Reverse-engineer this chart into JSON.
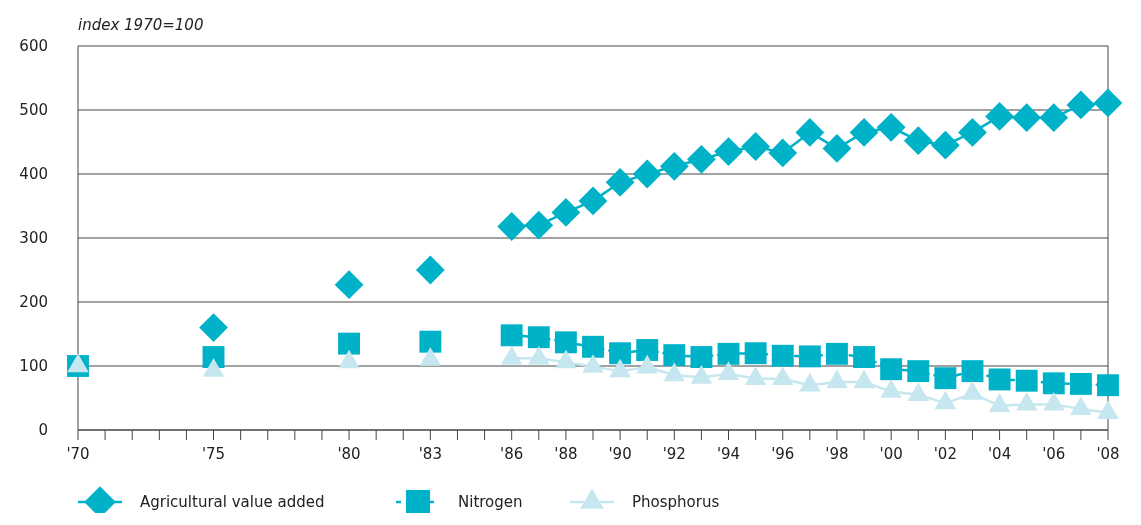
{
  "chart_data": {
    "type": "line",
    "ylabel": "index 1970=100",
    "x": [
      1970,
      1971,
      1972,
      1973,
      1974,
      1975,
      1976,
      1977,
      1978,
      1979,
      1980,
      1981,
      1982,
      1983,
      1984,
      1985,
      1986,
      1987,
      1988,
      1989,
      1990,
      1991,
      1992,
      1993,
      1994,
      1995,
      1996,
      1997,
      1998,
      1999,
      2000,
      2001,
      2002,
      2003,
      2004,
      2005,
      2006,
      2007,
      2008
    ],
    "series": [
      {
        "name": "Agricultural value added",
        "color": "#00b2c8",
        "marker": "diamond",
        "line_style": "solid",
        "values": [
          null,
          null,
          null,
          null,
          null,
          160,
          null,
          null,
          null,
          null,
          227,
          null,
          null,
          250,
          null,
          null,
          318,
          320,
          340,
          358,
          387,
          400,
          412,
          423,
          435,
          443,
          433,
          465,
          440,
          465,
          473,
          452,
          445,
          465,
          490,
          488,
          488,
          508,
          511
        ]
      },
      {
        "name": "Nitrogen",
        "color": "#00b2c8",
        "marker": "square",
        "line_style": "dashed",
        "values": [
          100,
          null,
          null,
          null,
          null,
          114,
          null,
          null,
          null,
          null,
          135,
          null,
          null,
          138,
          null,
          null,
          148,
          145,
          137,
          130,
          120,
          125,
          117,
          114,
          119,
          120,
          116,
          115,
          119,
          114,
          95,
          92,
          81,
          92,
          79,
          77,
          73,
          72,
          70
        ]
      },
      {
        "name": "Phosphorus",
        "color": "#c6e7ef",
        "marker": "triangle",
        "line_style": "solid",
        "values": [
          100,
          null,
          null,
          null,
          null,
          93,
          null,
          null,
          null,
          null,
          106,
          null,
          null,
          110,
          null,
          null,
          112,
          112,
          106,
          99,
          92,
          98,
          86,
          82,
          88,
          80,
          80,
          70,
          75,
          75,
          60,
          55,
          42,
          57,
          38,
          40,
          40,
          33,
          27
        ]
      }
    ],
    "xlim": [
      1970,
      2008
    ],
    "xticks": [
      {
        "value": 1970,
        "label": "'70"
      },
      {
        "value": 1971,
        "label": null
      },
      {
        "value": 1972,
        "label": null
      },
      {
        "value": 1973,
        "label": null
      },
      {
        "value": 1974,
        "label": null
      },
      {
        "value": 1975,
        "label": "'75"
      },
      {
        "value": 1976,
        "label": null
      },
      {
        "value": 1977,
        "label": null
      },
      {
        "value": 1978,
        "label": null
      },
      {
        "value": 1979,
        "label": null
      },
      {
        "value": 1980,
        "label": "'80"
      },
      {
        "value": 1981,
        "label": null
      },
      {
        "value": 1982,
        "label": null
      },
      {
        "value": 1983,
        "label": "'83"
      },
      {
        "value": 1984,
        "label": null
      },
      {
        "value": 1985,
        "label": null
      },
      {
        "value": 1986,
        "label": "'86"
      },
      {
        "value": 1987,
        "label": null
      },
      {
        "value": 1988,
        "label": "'88"
      },
      {
        "value": 1989,
        "label": null
      },
      {
        "value": 1990,
        "label": "'90"
      },
      {
        "value": 1991,
        "label": null
      },
      {
        "value": 1992,
        "label": "'92"
      },
      {
        "value": 1993,
        "label": null
      },
      {
        "value": 1994,
        "label": "'94"
      },
      {
        "value": 1995,
        "label": null
      },
      {
        "value": 1996,
        "label": "'96"
      },
      {
        "value": 1997,
        "label": null
      },
      {
        "value": 1998,
        "label": "'98"
      },
      {
        "value": 1999,
        "label": null
      },
      {
        "value": 2000,
        "label": "'00"
      },
      {
        "value": 2001,
        "label": null
      },
      {
        "value": 2002,
        "label": "'02"
      },
      {
        "value": 2003,
        "label": null
      },
      {
        "value": 2004,
        "label": "'04"
      },
      {
        "value": 2005,
        "label": null
      },
      {
        "value": 2006,
        "label": "'06"
      },
      {
        "value": 2007,
        "label": null
      },
      {
        "value": 2008,
        "label": "'08"
      }
    ],
    "ylim": [
      0,
      600
    ],
    "yticks": [
      0,
      100,
      200,
      300,
      400,
      500,
      600
    ],
    "grid": "y",
    "legend": "bottom"
  }
}
